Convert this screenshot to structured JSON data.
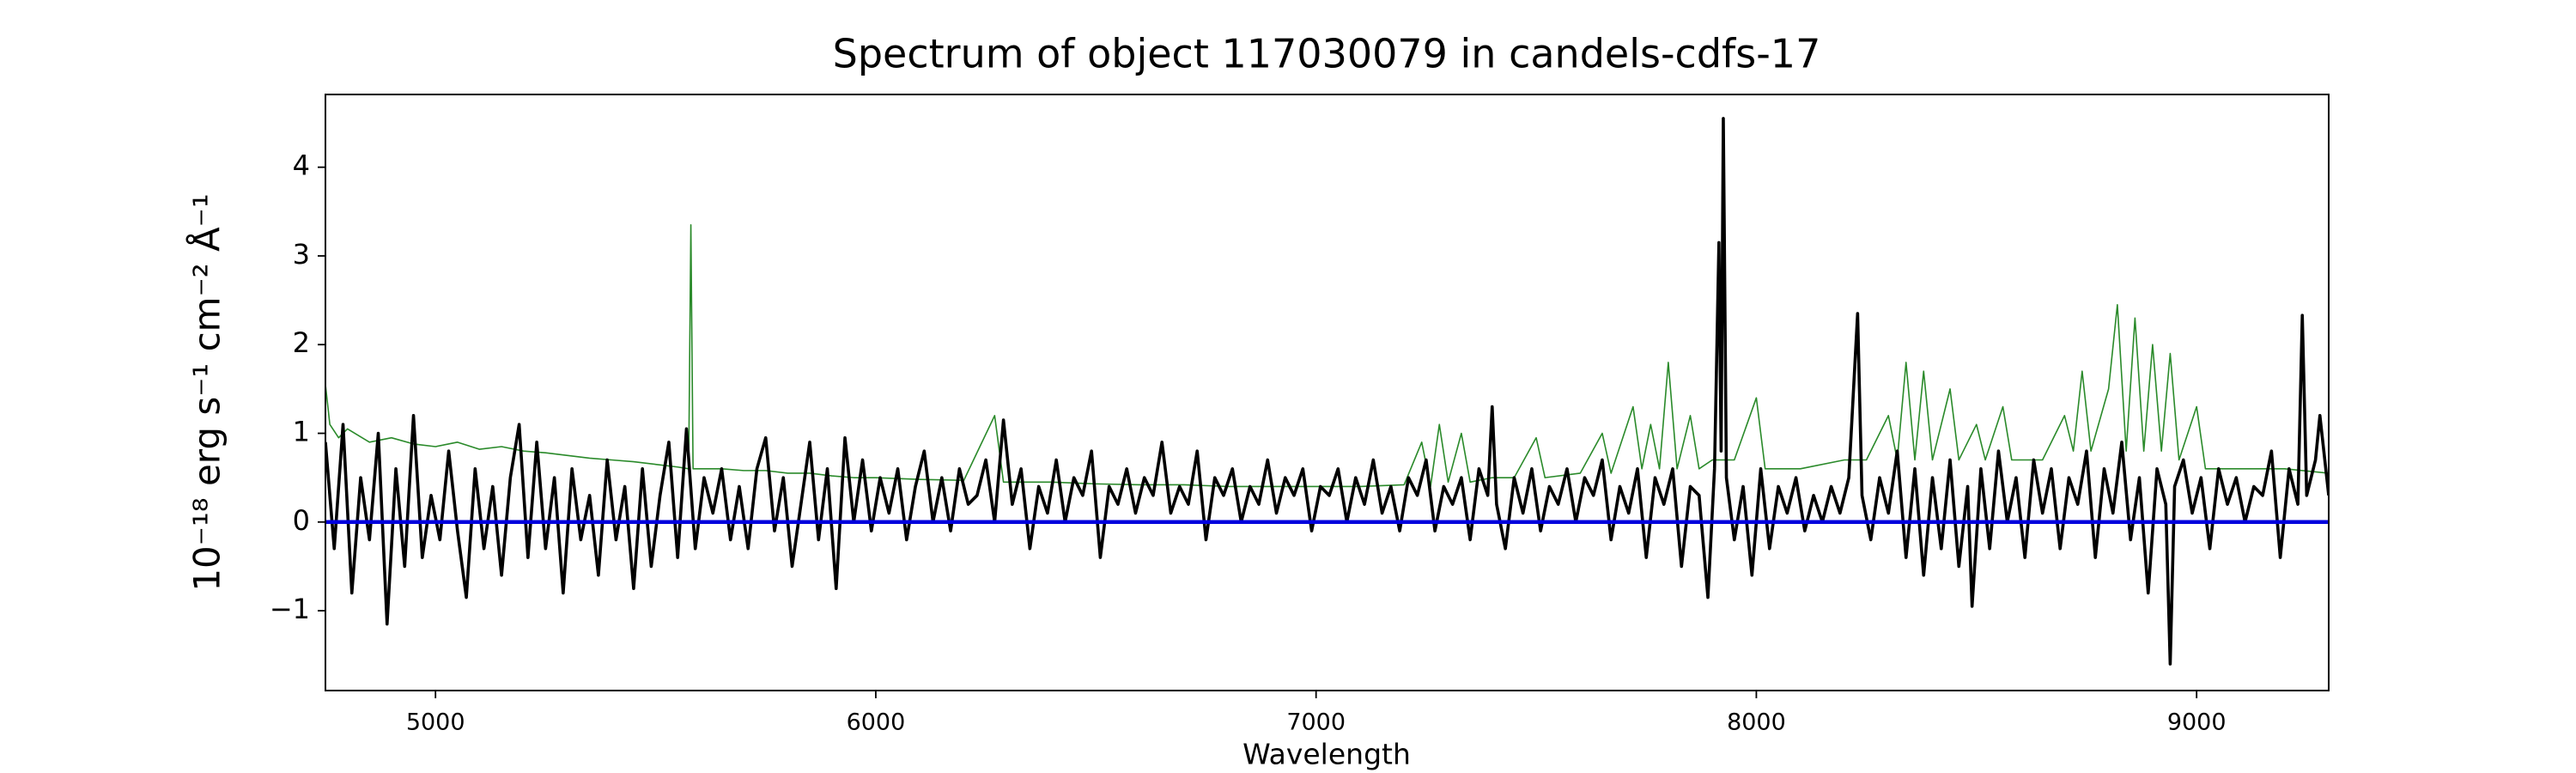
{
  "chart_data": {
    "type": "line",
    "title": "Spectrum of object 117030079 in candels-cdfs-17",
    "xlabel": "Wavelength",
    "ylabel": "10⁻¹⁸ erg s⁻¹ cm⁻² Å⁻¹",
    "xlim": [
      4750,
      9300
    ],
    "ylim": [
      -1.9,
      4.82
    ],
    "xticks": [
      5000,
      6000,
      7000,
      8000,
      9000
    ],
    "yticks": [
      {
        "value": -1,
        "label": "−1"
      },
      0,
      1,
      2,
      3,
      4
    ],
    "grid": false,
    "series": [
      {
        "color": "#2a8a2a",
        "x": [
          4750,
          4760,
          4780,
          4800,
          4850,
          4900,
          4950,
          5000,
          5050,
          5100,
          5150,
          5200,
          5250,
          5300,
          5350,
          5400,
          5450,
          5500,
          5550,
          5575,
          5580,
          5585,
          5650,
          5700,
          5750,
          5800,
          5850,
          5900,
          5950,
          6000,
          6100,
          6200,
          6270,
          6290,
          6400,
          6500,
          6600,
          6700,
          6800,
          6900,
          7000,
          7100,
          7200,
          7240,
          7260,
          7280,
          7300,
          7330,
          7350,
          7400,
          7450,
          7500,
          7520,
          7600,
          7650,
          7670,
          7720,
          7740,
          7760,
          7780,
          7800,
          7820,
          7850,
          7870,
          7900,
          7950,
          8000,
          8020,
          8100,
          8200,
          8250,
          8300,
          8320,
          8340,
          8360,
          8380,
          8400,
          8440,
          8460,
          8500,
          8520,
          8560,
          8580,
          8650,
          8700,
          8720,
          8740,
          8760,
          8800,
          8820,
          8840,
          8860,
          8880,
          8900,
          8920,
          8940,
          8960,
          9000,
          9020,
          9100,
          9200,
          9300
        ],
        "values": [
          1.55,
          1.1,
          0.95,
          1.05,
          0.9,
          0.95,
          0.88,
          0.85,
          0.9,
          0.82,
          0.85,
          0.8,
          0.78,
          0.75,
          0.72,
          0.7,
          0.68,
          0.65,
          0.62,
          0.6,
          3.35,
          0.6,
          0.6,
          0.58,
          0.58,
          0.55,
          0.55,
          0.52,
          0.5,
          0.5,
          0.48,
          0.47,
          1.2,
          0.45,
          0.45,
          0.43,
          0.42,
          0.42,
          0.4,
          0.4,
          0.4,
          0.4,
          0.42,
          0.9,
          0.4,
          1.1,
          0.45,
          1.0,
          0.45,
          0.5,
          0.5,
          0.95,
          0.5,
          0.55,
          1.0,
          0.55,
          1.3,
          0.6,
          1.1,
          0.6,
          1.8,
          0.6,
          1.2,
          0.6,
          0.7,
          0.7,
          1.4,
          0.6,
          0.6,
          0.7,
          0.7,
          1.2,
          0.7,
          1.8,
          0.7,
          1.7,
          0.7,
          1.5,
          0.7,
          1.1,
          0.7,
          1.3,
          0.7,
          0.7,
          1.2,
          0.8,
          1.7,
          0.8,
          1.5,
          2.45,
          0.8,
          2.3,
          0.8,
          2.0,
          0.8,
          1.9,
          0.7,
          1.3,
          0.6,
          0.6,
          0.6,
          0.55
        ],
        "width": 1.6
      },
      {
        "color": "#000000",
        "x": [
          4750,
          4770,
          4790,
          4810,
          4830,
          4850,
          4870,
          4890,
          4910,
          4930,
          4950,
          4970,
          4990,
          5010,
          5030,
          5050,
          5070,
          5090,
          5110,
          5130,
          5150,
          5170,
          5190,
          5210,
          5230,
          5250,
          5270,
          5290,
          5310,
          5330,
          5350,
          5370,
          5390,
          5410,
          5430,
          5450,
          5470,
          5490,
          5510,
          5530,
          5550,
          5570,
          5590,
          5610,
          5630,
          5650,
          5670,
          5690,
          5710,
          5730,
          5750,
          5770,
          5790,
          5810,
          5830,
          5850,
          5870,
          5890,
          5910,
          5930,
          5950,
          5970,
          5990,
          6010,
          6030,
          6050,
          6070,
          6090,
          6110,
          6130,
          6150,
          6170,
          6190,
          6210,
          6230,
          6250,
          6270,
          6290,
          6310,
          6330,
          6350,
          6370,
          6390,
          6410,
          6430,
          6450,
          6470,
          6490,
          6510,
          6530,
          6550,
          6570,
          6590,
          6610,
          6630,
          6650,
          6670,
          6690,
          6710,
          6730,
          6750,
          6770,
          6790,
          6810,
          6830,
          6850,
          6870,
          6890,
          6910,
          6930,
          6950,
          6970,
          6990,
          7010,
          7030,
          7050,
          7070,
          7090,
          7110,
          7130,
          7150,
          7170,
          7190,
          7210,
          7230,
          7250,
          7270,
          7290,
          7310,
          7330,
          7350,
          7370,
          7390,
          7400,
          7410,
          7430,
          7450,
          7470,
          7490,
          7510,
          7530,
          7550,
          7570,
          7590,
          7610,
          7630,
          7650,
          7670,
          7690,
          7710,
          7730,
          7750,
          7770,
          7790,
          7810,
          7830,
          7850,
          7870,
          7890,
          7905,
          7915,
          7920,
          7925,
          7932,
          7950,
          7970,
          7990,
          8010,
          8030,
          8050,
          8070,
          8090,
          8110,
          8130,
          8150,
          8170,
          8190,
          8210,
          8230,
          8240,
          8260,
          8280,
          8300,
          8320,
          8340,
          8360,
          8380,
          8400,
          8420,
          8440,
          8460,
          8480,
          8490,
          8510,
          8530,
          8550,
          8570,
          8590,
          8610,
          8630,
          8650,
          8670,
          8690,
          8710,
          8730,
          8750,
          8770,
          8790,
          8810,
          8830,
          8850,
          8870,
          8890,
          8910,
          8930,
          8940,
          8950,
          8970,
          8990,
          9010,
          9030,
          9050,
          9070,
          9090,
          9110,
          9130,
          9150,
          9170,
          9190,
          9210,
          9230,
          9240,
          9250,
          9270,
          9280,
          9300
        ],
        "values": [
          0.9,
          -0.3,
          1.1,
          -0.8,
          0.5,
          -0.2,
          1.0,
          -1.15,
          0.6,
          -0.5,
          1.2,
          -0.4,
          0.3,
          -0.2,
          0.8,
          -0.1,
          -0.85,
          0.6,
          -0.3,
          0.4,
          -0.6,
          0.5,
          1.1,
          -0.4,
          0.9,
          -0.3,
          0.5,
          -0.8,
          0.6,
          -0.2,
          0.3,
          -0.6,
          0.7,
          -0.2,
          0.4,
          -0.75,
          0.6,
          -0.5,
          0.3,
          0.9,
          -0.4,
          1.05,
          -0.3,
          0.5,
          0.1,
          0.6,
          -0.2,
          0.4,
          -0.3,
          0.6,
          0.95,
          -0.1,
          0.5,
          -0.5,
          0.2,
          0.9,
          -0.2,
          0.6,
          -0.75,
          0.95,
          0.0,
          0.7,
          -0.1,
          0.5,
          0.1,
          0.6,
          -0.2,
          0.4,
          0.8,
          0.0,
          0.5,
          -0.1,
          0.6,
          0.2,
          0.3,
          0.7,
          0.0,
          1.15,
          0.2,
          0.6,
          -0.3,
          0.4,
          0.1,
          0.7,
          0.0,
          0.5,
          0.3,
          0.8,
          -0.4,
          0.4,
          0.2,
          0.6,
          0.1,
          0.5,
          0.3,
          0.9,
          0.1,
          0.4,
          0.2,
          0.8,
          -0.2,
          0.5,
          0.3,
          0.6,
          0.0,
          0.4,
          0.2,
          0.7,
          0.1,
          0.5,
          0.3,
          0.6,
          -0.1,
          0.4,
          0.3,
          0.6,
          0.0,
          0.5,
          0.2,
          0.7,
          0.1,
          0.4,
          -0.1,
          0.5,
          0.3,
          0.7,
          -0.1,
          0.4,
          0.2,
          0.5,
          -0.2,
          0.6,
          0.3,
          1.3,
          0.2,
          -0.3,
          0.5,
          0.1,
          0.6,
          -0.1,
          0.4,
          0.2,
          0.6,
          0.0,
          0.5,
          0.3,
          0.7,
          -0.2,
          0.4,
          0.1,
          0.6,
          -0.4,
          0.5,
          0.2,
          0.6,
          -0.5,
          0.4,
          0.3,
          -0.85,
          0.6,
          3.15,
          0.8,
          4.55,
          0.5,
          -0.2,
          0.4,
          -0.6,
          0.6,
          -0.3,
          0.4,
          0.1,
          0.5,
          -0.1,
          0.3,
          0.0,
          0.4,
          0.1,
          0.5,
          2.35,
          0.3,
          -0.2,
          0.5,
          0.1,
          0.8,
          -0.4,
          0.6,
          -0.6,
          0.5,
          -0.3,
          0.7,
          -0.5,
          0.4,
          -0.95,
          0.6,
          -0.3,
          0.8,
          0.0,
          0.5,
          -0.4,
          0.7,
          0.1,
          0.6,
          -0.3,
          0.5,
          0.2,
          0.8,
          -0.4,
          0.6,
          0.1,
          0.9,
          -0.2,
          0.5,
          -0.8,
          0.6,
          0.2,
          -1.6,
          0.4,
          0.7,
          0.1,
          0.5,
          -0.3,
          0.6,
          0.2,
          0.5,
          0.0,
          0.4,
          0.3,
          0.8,
          -0.4,
          0.6,
          0.2,
          2.33,
          0.3,
          0.7,
          1.2,
          0.3
        ],
        "width": 3.6
      },
      {
        "color": "#0000dd",
        "x": [
          4750,
          9300
        ],
        "values": [
          0,
          0
        ],
        "width": 4.5
      }
    ]
  }
}
